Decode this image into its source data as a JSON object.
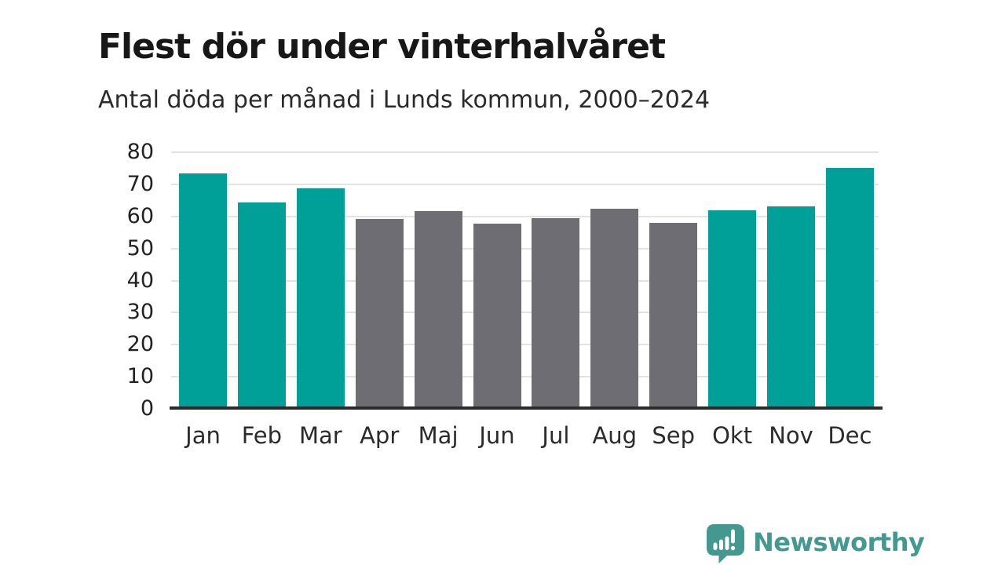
{
  "chart_data": {
    "type": "bar",
    "title": "Flest dör under vinterhalvåret",
    "subtitle": "Antal döda per månad i Lunds kommun, 2000–2024",
    "categories": [
      "Jan",
      "Feb",
      "Mar",
      "Apr",
      "Maj",
      "Jun",
      "Jul",
      "Aug",
      "Sep",
      "Okt",
      "Nov",
      "Dec"
    ],
    "values": [
      73.5,
      64.4,
      68.7,
      59.1,
      61.7,
      57.7,
      59.5,
      62.5,
      58.0,
      62.0,
      63.2,
      75.2
    ],
    "bar_colors": [
      "teal",
      "teal",
      "teal",
      "gray",
      "gray",
      "gray",
      "gray",
      "gray",
      "gray",
      "teal",
      "teal",
      "teal"
    ],
    "palette": {
      "teal": "#00A099",
      "gray": "#6E6D73"
    },
    "xlabel": "",
    "ylabel": "",
    "ylim": [
      0,
      80
    ],
    "yticks": [
      0,
      10,
      20,
      30,
      40,
      50,
      60,
      70,
      80
    ],
    "grid": "horizontal",
    "legend": "none",
    "gridline_color": "#e3e3e3",
    "axis_color": "#2b2b2b"
  },
  "footer": {
    "brand": "Newsworthy",
    "brand_color": "#43988F",
    "logo_icon": "newsworthy-speech-bubble-chart-icon"
  }
}
